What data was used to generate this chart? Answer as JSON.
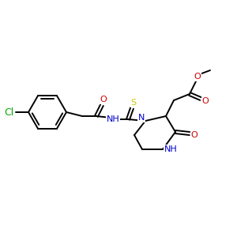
{
  "bg_color": "#ffffff",
  "atom_colors": {
    "C": "#000000",
    "N": "#0000cc",
    "O": "#cc0000",
    "S": "#cccc00",
    "Cl": "#00aa00",
    "H": "#000000"
  },
  "figsize": [
    3.0,
    3.0
  ],
  "dpi": 100,
  "lw": 1.4,
  "fontsize": 8.0
}
